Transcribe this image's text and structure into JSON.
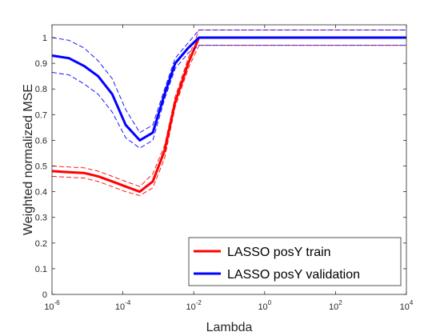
{
  "chart_data": {
    "type": "line",
    "title": "",
    "xlabel": "Lambda",
    "ylabel": "Weighted normalized MSE",
    "xscale": "log",
    "xlim": [
      1e-06,
      10000
    ],
    "ylim": [
      0,
      1.05
    ],
    "grid": false,
    "legend_position": "bottom-right",
    "x_ticks": [
      {
        "value": 1e-06,
        "base": "10",
        "exp": "-6"
      },
      {
        "value": 0.0001,
        "base": "10",
        "exp": "-4"
      },
      {
        "value": 0.01,
        "base": "10",
        "exp": "-2"
      },
      {
        "value": 1,
        "base": "10",
        "exp": "0"
      },
      {
        "value": 100,
        "base": "10",
        "exp": "2"
      },
      {
        "value": 10000,
        "base": "10",
        "exp": "4"
      }
    ],
    "y_ticks": [
      "0",
      "0.1",
      "0.2",
      "0.3",
      "0.4",
      "0.5",
      "0.6",
      "0.7",
      "0.8",
      "0.9",
      "1"
    ],
    "x": [
      1e-06,
      3e-06,
      8e-06,
      2e-05,
      5e-05,
      0.00012,
      0.0003,
      0.0007,
      0.0015,
      0.003,
      0.007,
      0.014,
      100,
      10000
    ],
    "series": [
      {
        "name": "LASSO posY train",
        "color": "#ff0000",
        "values": [
          0.48,
          0.476,
          0.473,
          0.46,
          0.44,
          0.42,
          0.4,
          0.44,
          0.56,
          0.75,
          0.9,
          1.0,
          1.0,
          1.0
        ],
        "upper": [
          0.5,
          0.496,
          0.493,
          0.48,
          0.46,
          0.44,
          0.42,
          0.47,
          0.58,
          0.77,
          0.92,
          1.03,
          1.03,
          1.03
        ],
        "lower": [
          0.46,
          0.456,
          0.453,
          0.44,
          0.42,
          0.4,
          0.385,
          0.415,
          0.53,
          0.73,
          0.88,
          0.97,
          0.97,
          0.97
        ]
      },
      {
        "name": "LASSO posY validation",
        "color": "#0000ff",
        "values": [
          0.93,
          0.92,
          0.89,
          0.85,
          0.78,
          0.66,
          0.6,
          0.63,
          0.78,
          0.9,
          0.96,
          1.0,
          1.0,
          1.0
        ],
        "upper": [
          1.0,
          0.99,
          0.96,
          0.91,
          0.84,
          0.72,
          0.63,
          0.66,
          0.8,
          0.92,
          0.98,
          1.03,
          1.03,
          1.03
        ],
        "lower": [
          0.865,
          0.855,
          0.82,
          0.78,
          0.71,
          0.61,
          0.57,
          0.6,
          0.76,
          0.88,
          0.94,
          0.97,
          0.97,
          0.97
        ]
      }
    ]
  }
}
